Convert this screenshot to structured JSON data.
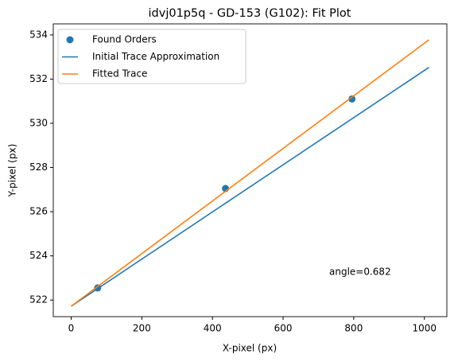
{
  "chart_data": {
    "type": "line",
    "title": "idvj01p5q - GD-153 (G102): Fit Plot",
    "x_label": "X-pixel (px)",
    "y_label": "Y-pixel (px)",
    "series": [
      {
        "name": "Found Orders",
        "type": "scatter",
        "color": "#1f77b4",
        "x": [
          75,
          437,
          795
        ],
        "values": [
          522.55,
          527.05,
          531.1
        ]
      },
      {
        "name": "Initial Trace Approximation",
        "type": "line",
        "color": "#1f77b4",
        "x": [
          0,
          1013
        ],
        "values": [
          521.72,
          532.53
        ]
      },
      {
        "name": "Fitted Trace",
        "type": "line",
        "color": "#ff7f0e",
        "x": [
          0,
          1013
        ],
        "values": [
          521.72,
          533.78
        ]
      }
    ],
    "annotation": "angle=0.682",
    "xlim": [
      -50.65,
      1063.65
    ],
    "xticks": [
      0,
      200,
      400,
      600,
      800,
      1000
    ],
    "ylim": [
      521.25,
      534.5
    ],
    "yticks": [
      522,
      524,
      526,
      528,
      530,
      532,
      534
    ],
    "grid": false,
    "legend": "upper left"
  }
}
